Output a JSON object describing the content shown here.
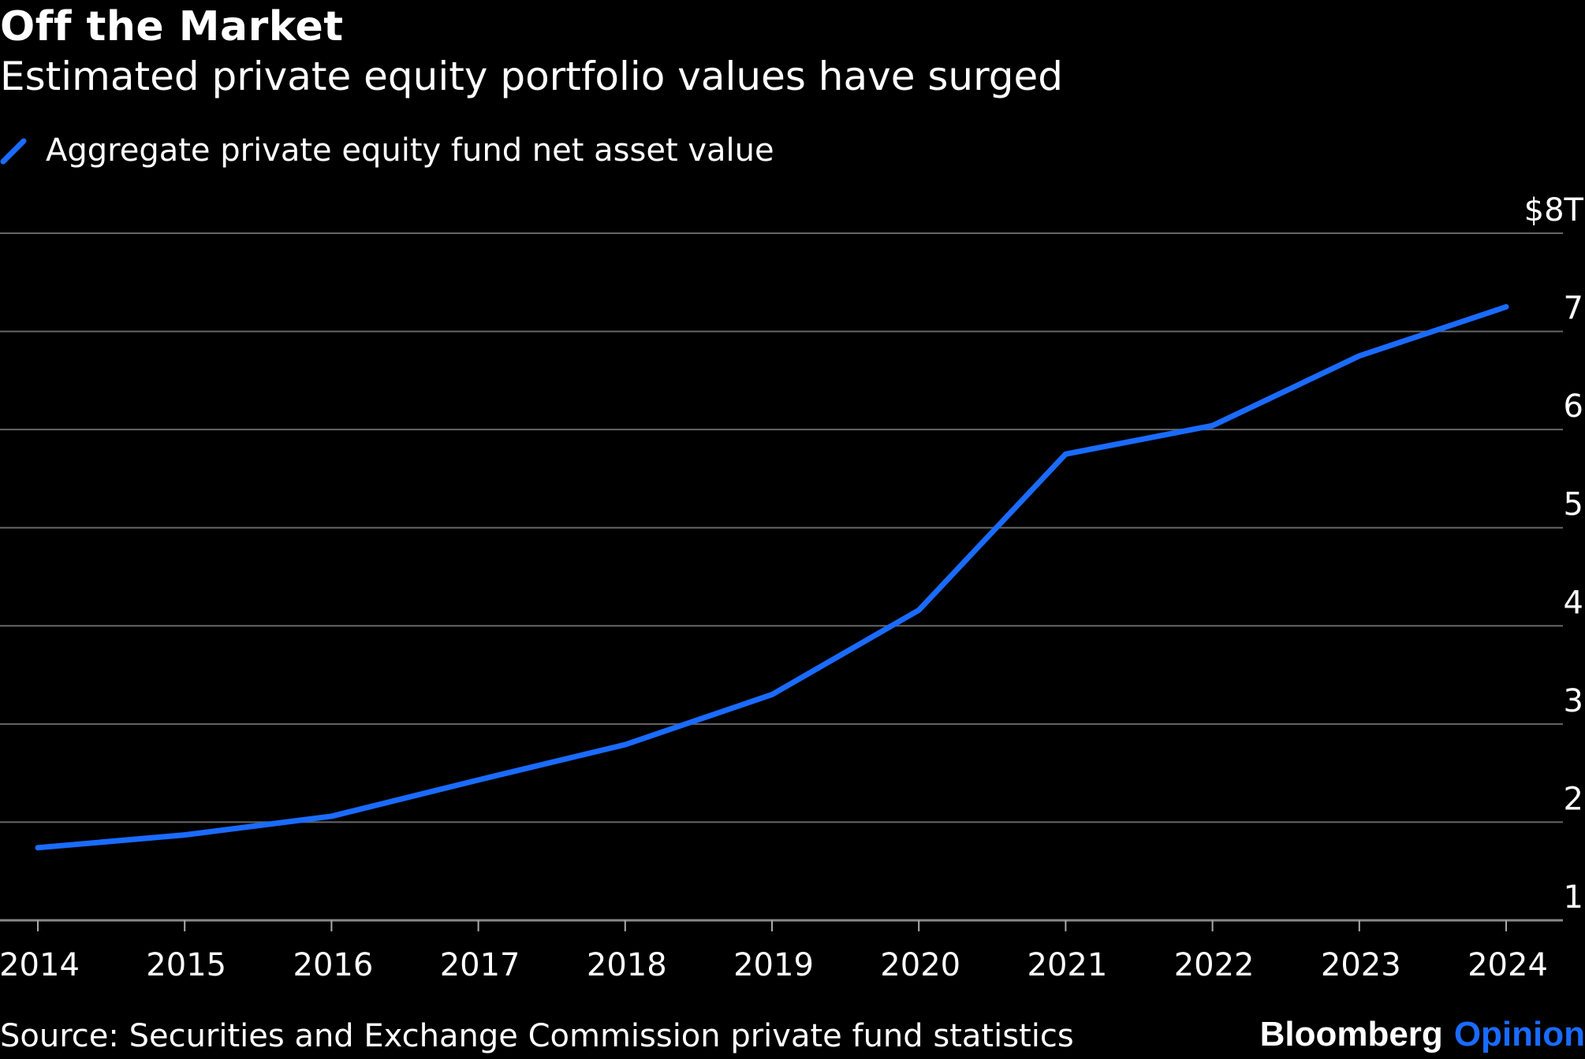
{
  "title": "Off the Market",
  "subtitle": "Estimated private equity portfolio values have surged",
  "source": "Source: Securities and Exchange Commission private fund statistics",
  "logo": {
    "brand": "Bloomberg",
    "section": "Opinion"
  },
  "colors": {
    "background": "#000000",
    "series": "#1a6bff",
    "grid": "#666666",
    "text": "#ffffff",
    "opinion": "#1a6bff"
  },
  "chart_data": {
    "type": "line",
    "x": [
      "2014",
      "2015",
      "2016",
      "2017",
      "2018",
      "2019",
      "2020",
      "2021",
      "2022",
      "2023",
      "2024"
    ],
    "series": [
      {
        "name": "Aggregate private equity fund net asset value",
        "values": [
          1.74,
          1.87,
          2.06,
          2.43,
          2.79,
          3.3,
          4.16,
          5.75,
          6.04,
          6.75,
          7.25
        ]
      }
    ],
    "y_ticks": [
      "1",
      "2",
      "3",
      "4",
      "5",
      "6",
      "7",
      "$8T"
    ],
    "ylim": [
      1,
      8
    ],
    "grid": true,
    "legend_position": "top-left"
  }
}
